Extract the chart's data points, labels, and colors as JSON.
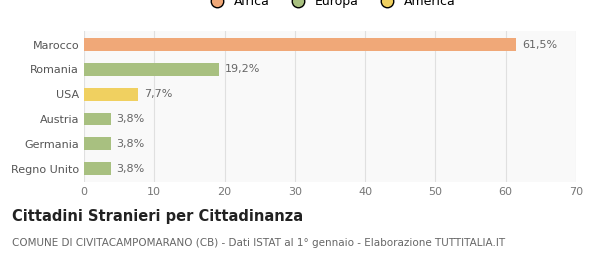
{
  "categories": [
    "Marocco",
    "Romania",
    "USA",
    "Austria",
    "Germania",
    "Regno Unito"
  ],
  "values": [
    61.5,
    19.2,
    7.7,
    3.8,
    3.8,
    3.8
  ],
  "labels": [
    "61,5%",
    "19,2%",
    "7,7%",
    "3,8%",
    "3,8%",
    "3,8%"
  ],
  "colors": [
    "#f0a878",
    "#a8c080",
    "#f0d060",
    "#a8c080",
    "#a8c080",
    "#a8c080"
  ],
  "legend_labels": [
    "Africa",
    "Europa",
    "America"
  ],
  "legend_colors": [
    "#f0a878",
    "#a8c080",
    "#f0d060"
  ],
  "xlim": [
    0,
    70
  ],
  "xticks": [
    0,
    10,
    20,
    30,
    40,
    50,
    60,
    70
  ],
  "title": "Cittadini Stranieri per Cittadinanza",
  "subtitle": "COMUNE DI CIVITACAMPOMARANO (CB) - Dati ISTAT al 1° gennaio - Elaborazione TUTTITALIA.IT",
  "bg_color": "#ffffff",
  "plot_bg_color": "#f9f9f9",
  "grid_color": "#e0e0e0",
  "bar_height": 0.52,
  "label_fontsize": 8,
  "tick_fontsize": 8,
  "title_fontsize": 10.5,
  "subtitle_fontsize": 7.5
}
